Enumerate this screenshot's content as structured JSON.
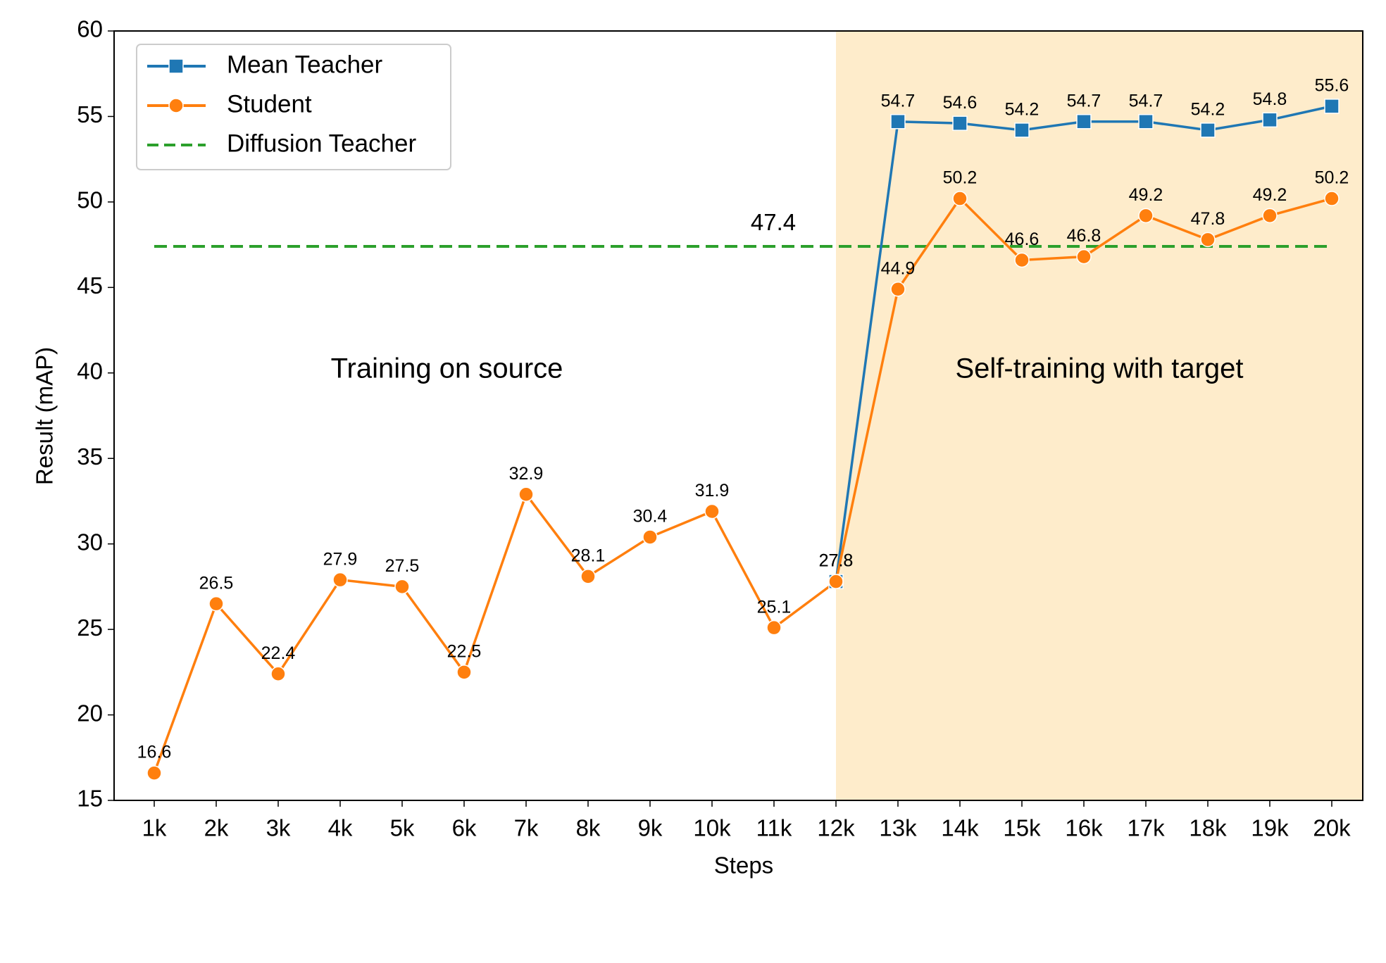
{
  "chart_data": {
    "type": "line",
    "x_label": "Steps",
    "y_label": "Result (mAP)",
    "categories": [
      "1k",
      "2k",
      "3k",
      "4k",
      "5k",
      "6k",
      "7k",
      "8k",
      "9k",
      "10k",
      "11k",
      "12k",
      "13k",
      "14k",
      "15k",
      "16k",
      "17k",
      "18k",
      "19k",
      "20k"
    ],
    "series": [
      {
        "name": "Mean Teacher",
        "color": "#1f77b4",
        "marker": "square",
        "values": [
          null,
          null,
          null,
          null,
          null,
          null,
          null,
          null,
          null,
          null,
          null,
          27.8,
          54.7,
          54.6,
          54.2,
          54.7,
          54.7,
          54.2,
          54.8,
          55.6
        ]
      },
      {
        "name": "Student",
        "color": "#ff7f0e",
        "marker": "circle",
        "values": [
          16.6,
          26.5,
          22.4,
          27.9,
          27.5,
          22.5,
          32.9,
          28.1,
          30.4,
          31.9,
          25.1,
          27.8,
          44.9,
          50.2,
          46.6,
          46.8,
          49.2,
          47.8,
          49.2,
          50.2
        ]
      }
    ],
    "reference_lines": [
      {
        "name": "Diffusion Teacher",
        "value": 47.4,
        "color": "#2ca02c",
        "style": "dashed"
      }
    ],
    "shaded_region": {
      "from": "12k",
      "color": "#feeccb"
    },
    "annotations": [
      {
        "text": "Training on source",
        "region": "left"
      },
      {
        "text": "Self-training with target",
        "region": "right"
      }
    ],
    "ylim": [
      15,
      60
    ],
    "yticks": [
      15,
      20,
      25,
      30,
      35,
      40,
      45,
      50,
      55,
      60
    ],
    "legend": "upper left"
  }
}
